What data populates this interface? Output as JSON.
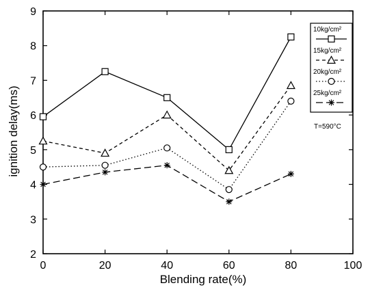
{
  "chart_data": {
    "type": "line",
    "title": "",
    "xlabel": "Blending rate(%)",
    "ylabel": "ignition delay(ms)",
    "xlim": [
      0,
      100
    ],
    "ylim": [
      2,
      9
    ],
    "xticks": [
      "0",
      "20",
      "40",
      "60",
      "80",
      "100"
    ],
    "yticks": [
      "2",
      "3",
      "4",
      "5",
      "6",
      "7",
      "8",
      "9"
    ],
    "grid": false,
    "legend_position": "top-right",
    "annotation": "T=590°C",
    "x": [
      0,
      20,
      40,
      60,
      80
    ],
    "series": [
      {
        "name": "10kg/cm²",
        "marker": "square",
        "dash": "solid",
        "values": [
          5.95,
          7.25,
          6.5,
          5.0,
          8.25
        ]
      },
      {
        "name": "15kg/cm²",
        "marker": "triangle",
        "dash": "dashed",
        "values": [
          5.25,
          4.9,
          6.0,
          4.4,
          6.85
        ]
      },
      {
        "name": "20kg/cm²",
        "marker": "circle",
        "dash": "dotted",
        "values": [
          4.5,
          4.55,
          5.05,
          3.85,
          6.4
        ]
      },
      {
        "name": "25kg/cm²",
        "marker": "star",
        "dash": "longdash",
        "values": [
          4.0,
          4.35,
          4.55,
          3.5,
          4.3
        ]
      }
    ]
  }
}
